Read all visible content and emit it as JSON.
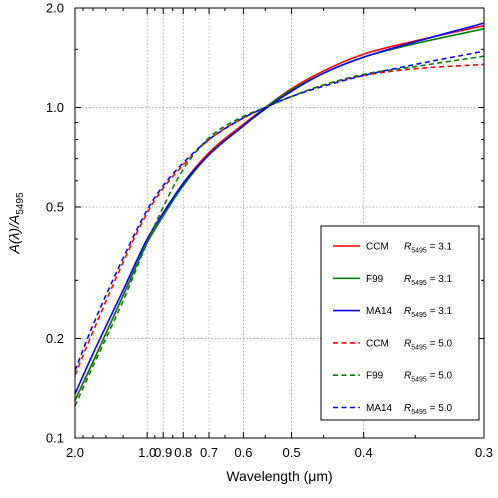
{
  "chart_data": {
    "type": "line",
    "title": "",
    "xlabel": "Wavelength (μm)",
    "ylabel": "A(λ)/A5495",
    "x_scale": "reciprocal",
    "y_scale": "log",
    "xlim": [
      2.0,
      0.3
    ],
    "ylim": [
      0.1,
      2.0
    ],
    "x_ticks": [
      2.0,
      1.0,
      0.9,
      0.8,
      0.7,
      0.6,
      0.5,
      0.4,
      0.3
    ],
    "x_tick_labels": [
      "2.0",
      "1.0",
      "0.9",
      "0.8",
      "0.7",
      "0.6",
      "0.5",
      "0.4",
      "0.3"
    ],
    "y_ticks": [
      0.1,
      0.2,
      0.5,
      1.0,
      2.0
    ],
    "y_tick_labels": [
      "0.1",
      "0.2",
      "0.5",
      "1.0",
      "2.0"
    ],
    "grid": true,
    "legend_position": "lower-right",
    "series": [
      {
        "label": "CCM",
        "param": "3.1",
        "color": "#ff0000",
        "dash": "solid",
        "x": [
          2.0,
          1.6,
          1.2,
          1.0,
          0.9,
          0.8,
          0.7,
          0.6,
          0.55,
          0.5,
          0.45,
          0.4,
          0.35,
          0.3
        ],
        "y": [
          0.13,
          0.17,
          0.27,
          0.39,
          0.47,
          0.59,
          0.73,
          0.89,
          1.0,
          1.14,
          1.29,
          1.45,
          1.59,
          1.77
        ]
      },
      {
        "label": "F99",
        "param": "3.1",
        "color": "#008000",
        "dash": "solid",
        "x": [
          2.0,
          1.6,
          1.2,
          1.0,
          0.9,
          0.8,
          0.7,
          0.6,
          0.55,
          0.5,
          0.45,
          0.4,
          0.35,
          0.3
        ],
        "y": [
          0.13,
          0.17,
          0.27,
          0.39,
          0.47,
          0.58,
          0.72,
          0.88,
          1.0,
          1.13,
          1.27,
          1.42,
          1.56,
          1.73
        ]
      },
      {
        "label": "MA14",
        "param": "3.1",
        "color": "#0000ff",
        "dash": "solid",
        "x": [
          2.0,
          1.6,
          1.2,
          1.0,
          0.9,
          0.8,
          0.7,
          0.6,
          0.55,
          0.5,
          0.45,
          0.4,
          0.35,
          0.3
        ],
        "y": [
          0.136,
          0.18,
          0.28,
          0.4,
          0.48,
          0.59,
          0.72,
          0.88,
          0.99,
          1.12,
          1.27,
          1.42,
          1.58,
          1.8
        ]
      },
      {
        "label": "CCM",
        "param": "5.0",
        "color": "#ff0000",
        "dash": "dashed",
        "x": [
          2.0,
          1.6,
          1.2,
          1.0,
          0.9,
          0.8,
          0.7,
          0.6,
          0.55,
          0.5,
          0.45,
          0.4,
          0.35,
          0.3
        ],
        "y": [
          0.155,
          0.21,
          0.34,
          0.48,
          0.57,
          0.67,
          0.8,
          0.93,
          1.0,
          1.08,
          1.17,
          1.25,
          1.31,
          1.35
        ]
      },
      {
        "label": "F99",
        "param": "5.0",
        "color": "#008000",
        "dash": "dashed",
        "x": [
          2.0,
          1.6,
          1.2,
          1.0,
          0.9,
          0.8,
          0.7,
          0.6,
          0.55,
          0.5,
          0.45,
          0.4,
          0.35,
          0.3
        ],
        "y": [
          0.125,
          0.165,
          0.26,
          0.39,
          0.5,
          0.65,
          0.81,
          0.94,
          1.0,
          1.08,
          1.17,
          1.26,
          1.33,
          1.43
        ]
      },
      {
        "label": "MA14",
        "param": "5.0",
        "color": "#0000ff",
        "dash": "dashed",
        "x": [
          2.0,
          1.6,
          1.2,
          1.0,
          0.9,
          0.8,
          0.7,
          0.6,
          0.55,
          0.5,
          0.45,
          0.4,
          0.35,
          0.3
        ],
        "y": [
          0.16,
          0.22,
          0.35,
          0.49,
          0.58,
          0.68,
          0.8,
          0.93,
          1.0,
          1.08,
          1.16,
          1.25,
          1.35,
          1.48
        ]
      }
    ],
    "legend": {
      "param_symbol": "R",
      "param_subscript": "5495",
      "equals": " = "
    }
  }
}
